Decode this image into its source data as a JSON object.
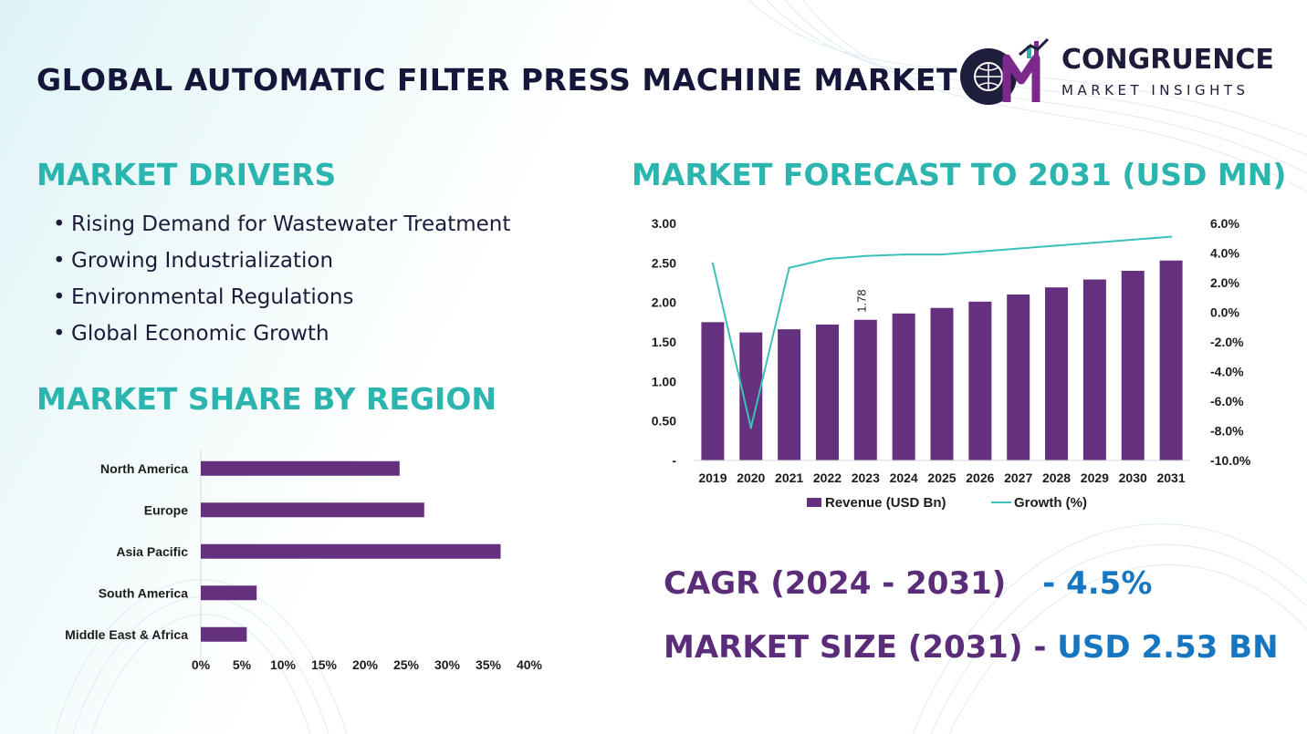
{
  "title": "GLOBAL AUTOMATIC FILTER PRESS MACHINE MARKET",
  "logo": {
    "name": "CONGRUENCE",
    "subtitle": "MARKET INSIGHTS",
    "mark": "CM"
  },
  "sections": {
    "drivers_heading": "MARKET DRIVERS",
    "region_heading": "MARKET SHARE BY REGION",
    "forecast_heading": "MARKET FORECAST TO 2031 (USD MN)"
  },
  "drivers": [
    "Rising Demand for Wastewater Treatment",
    "Growing Industrialization",
    "Environmental Regulations",
    "Global Economic Growth"
  ],
  "kpis": {
    "cagr_label": "CAGR (2024 - 2031)",
    "cagr_value": "- 4.5%",
    "size_label": "MARKET SIZE (2031) -",
    "size_value": "USD 2.53 BN"
  },
  "colors": {
    "bar": "#65317e",
    "line": "#3cc0b8",
    "heading": "#2bb5ae",
    "title": "#16163a",
    "kpi_label": "#5b2c7a",
    "kpi_value": "#1776c1"
  },
  "chart_data": [
    {
      "type": "bar",
      "orientation": "horizontal",
      "categories": [
        "North America",
        "Europe",
        "Asia Pacific",
        "South America",
        "Middle East & Africa"
      ],
      "values": [
        24.2,
        27.2,
        36.5,
        6.8,
        5.6
      ],
      "xlim": [
        0,
        40
      ],
      "xticks": [
        "0%",
        "5%",
        "10%",
        "15%",
        "20%",
        "25%",
        "30%",
        "35%",
        "40%"
      ],
      "grid": false
    },
    {
      "type": "bar",
      "categories": [
        "2019",
        "2020",
        "2021",
        "2022",
        "2023",
        "2024",
        "2025",
        "2026",
        "2027",
        "2028",
        "2029",
        "2030",
        "2031"
      ],
      "series": [
        {
          "name": "Revenue (USD Bn)",
          "type": "bar",
          "axis": "left",
          "values": [
            1.75,
            1.62,
            1.66,
            1.72,
            1.78,
            1.86,
            1.93,
            2.01,
            2.1,
            2.19,
            2.29,
            2.4,
            2.53
          ]
        },
        {
          "name": "Growth (%)",
          "type": "line",
          "axis": "right",
          "values": [
            3.3,
            -7.8,
            3.0,
            3.6,
            3.8,
            3.9,
            3.9,
            4.1,
            4.3,
            4.5,
            4.7,
            4.9,
            5.1
          ]
        }
      ],
      "data_labels": [
        {
          "index": 4,
          "text": "1.78"
        }
      ],
      "ylim": [
        0,
        3
      ],
      "yticks": [
        "-",
        "0.50",
        "1.00",
        "1.50",
        "2.00",
        "2.50",
        "3.00"
      ],
      "y2lim": [
        -10,
        6
      ],
      "y2ticks": [
        "-10.0%",
        "-8.0%",
        "-6.0%",
        "-4.0%",
        "-2.0%",
        "0.0%",
        "2.0%",
        "4.0%",
        "6.0%"
      ],
      "legend": "bottom",
      "grid": false
    }
  ]
}
